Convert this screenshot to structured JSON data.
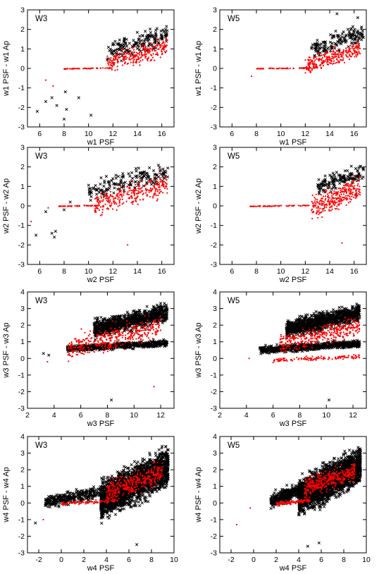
{
  "figure": {
    "rows": [
      {
        "xlabel": "w1 PSF",
        "ylabel": "w1 PSF - w1 Ap"
      },
      {
        "xlabel": "w2 PSF",
        "ylabel": "w2 PSF - w2 Ap"
      },
      {
        "xlabel": "w3 PSF",
        "ylabel": "w3 PSF - w3 Ap"
      },
      {
        "xlabel": "w4 PSF",
        "ylabel": "w4 PSF - w4 Ap"
      }
    ],
    "column_tags": [
      "W3",
      "W5"
    ],
    "colors": {
      "black_series": "#000000",
      "red_series": "#ff0000"
    }
  },
  "chart_data": [
    {
      "type": "scatter",
      "panel": "W3",
      "xlabel": "w1 PSF",
      "ylabel": "w1 PSF - w1 Ap",
      "xlim": [
        5,
        17
      ],
      "ylim": [
        -3,
        3
      ],
      "xticks": [
        6,
        8,
        10,
        12,
        14,
        16
      ],
      "yticks": [
        -3,
        -2,
        -1,
        0,
        1,
        2,
        3
      ],
      "series": [
        {
          "color": "#000000",
          "marker": "x",
          "clouds": [
            {
              "x": [
                11.5,
                16.5
              ],
              "y": [
                0.0,
                2.5
              ],
              "n": 170
            }
          ],
          "points": [
            {
              "x": 5.8,
              "y": -2.2
            },
            {
              "x": 6.5,
              "y": -1.7
            },
            {
              "x": 7.0,
              "y": -1.5
            },
            {
              "x": 7.4,
              "y": -1.9
            },
            {
              "x": 8.0,
              "y": -2.6
            },
            {
              "x": 8.2,
              "y": -2.1
            },
            {
              "x": 9.2,
              "y": -1.5
            },
            {
              "x": 10.2,
              "y": -2.4
            },
            {
              "x": 8.1,
              "y": -1.2
            }
          ]
        },
        {
          "color": "#ff0000",
          "marker": "dot",
          "clouds": [
            {
              "x": [
                8.0,
                12.0
              ],
              "y": [
                -0.05,
                0.05
              ],
              "n": 55
            },
            {
              "x": [
                11.5,
                16.5
              ],
              "y": [
                -0.4,
                1.8
              ],
              "n": 260
            }
          ],
          "points": [
            {
              "x": 6.5,
              "y": -0.6
            },
            {
              "x": 7.1,
              "y": -0.9
            }
          ]
        }
      ]
    },
    {
      "type": "scatter",
      "panel": "W5",
      "xlabel": "w1 PSF",
      "ylabel": "w1 PSF - w1 Ap",
      "xlim": [
        5,
        17
      ],
      "ylim": [
        -3,
        3
      ],
      "xticks": [
        6,
        8,
        10,
        12,
        14,
        16
      ],
      "yticks": [
        -3,
        -2,
        -1,
        0,
        1,
        2,
        3
      ],
      "series": [
        {
          "color": "#000000",
          "marker": "x",
          "clouds": [
            {
              "x": [
                12.5,
                16.8
              ],
              "y": [
                0.2,
                2.5
              ],
              "n": 150
            }
          ],
          "points": [
            {
              "x": 14.6,
              "y": 2.8
            },
            {
              "x": 16.3,
              "y": 2.6
            }
          ]
        },
        {
          "color": "#ff0000",
          "marker": "dot",
          "clouds": [
            {
              "x": [
                8.0,
                12.5
              ],
              "y": [
                -0.05,
                0.05
              ],
              "n": 60
            },
            {
              "x": [
                12.0,
                16.5
              ],
              "y": [
                -0.5,
                1.6
              ],
              "n": 280
            }
          ],
          "points": [
            {
              "x": 7.6,
              "y": -0.4
            }
          ]
        }
      ]
    },
    {
      "type": "scatter",
      "panel": "W3",
      "xlabel": "w2 PSF",
      "ylabel": "w2 PSF - w2 Ap",
      "xlim": [
        5,
        17
      ],
      "ylim": [
        -3,
        3
      ],
      "xticks": [
        6,
        8,
        10,
        12,
        14,
        16
      ],
      "yticks": [
        -3,
        -2,
        -1,
        0,
        1,
        2,
        3
      ],
      "series": [
        {
          "color": "#000000",
          "marker": "x",
          "clouds": [
            {
              "x": [
                10.0,
                16.5
              ],
              "y": [
                0.0,
                2.5
              ],
              "n": 170
            }
          ],
          "points": [
            {
              "x": 5.7,
              "y": -1.5
            },
            {
              "x": 7.0,
              "y": -1.4
            },
            {
              "x": 7.2,
              "y": -1.6
            },
            {
              "x": 7.3,
              "y": -1.3
            },
            {
              "x": 6.5,
              "y": -0.3
            },
            {
              "x": 8.0,
              "y": -0.2
            },
            {
              "x": 8.5,
              "y": 0.2
            }
          ]
        },
        {
          "color": "#ff0000",
          "marker": "dot",
          "clouds": [
            {
              "x": [
                7.5,
                11.0
              ],
              "y": [
                -0.05,
                0.05
              ],
              "n": 50
            },
            {
              "x": [
                10.5,
                16.5
              ],
              "y": [
                -0.8,
                2.0
              ],
              "n": 300
            }
          ],
          "points": [
            {
              "x": 5.3,
              "y": -0.8
            },
            {
              "x": 6.7,
              "y": -0.1
            },
            {
              "x": 13.2,
              "y": -2.0
            }
          ]
        }
      ]
    },
    {
      "type": "scatter",
      "panel": "W5",
      "xlabel": "w2 PSF",
      "ylabel": "w2 PSF - w2 Ap",
      "xlim": [
        5,
        17
      ],
      "ylim": [
        -3,
        3
      ],
      "xticks": [
        6,
        8,
        10,
        12,
        14,
        16
      ],
      "yticks": [
        -3,
        -2,
        -1,
        0,
        1,
        2,
        3
      ],
      "series": [
        {
          "color": "#000000",
          "marker": "x",
          "clouds": [
            {
              "x": [
                13.0,
                16.8
              ],
              "y": [
                0.3,
                2.4
              ],
              "n": 140
            }
          ],
          "points": [
            {
              "x": 13.2,
              "y": 0.8
            }
          ]
        },
        {
          "color": "#ff0000",
          "marker": "dot",
          "clouds": [
            {
              "x": [
                7.5,
                12.5
              ],
              "y": [
                -0.05,
                0.05
              ],
              "n": 60
            },
            {
              "x": [
                12.5,
                16.5
              ],
              "y": [
                -1.0,
                1.8
              ],
              "n": 300
            }
          ],
          "points": [
            {
              "x": 15.0,
              "y": -1.9
            }
          ]
        }
      ]
    },
    {
      "type": "scatter",
      "panel": "W3",
      "xlabel": "w3 PSF",
      "ylabel": "w3 PSF - w3 Ap",
      "xlim": [
        2,
        13
      ],
      "ylim": [
        -3,
        4
      ],
      "xticks": [
        2,
        4,
        6,
        8,
        10,
        12
      ],
      "yticks": [
        -3,
        -2,
        -1,
        0,
        1,
        2,
        3,
        4
      ],
      "series": [
        {
          "color": "#000000",
          "marker": "x",
          "clouds": [
            {
              "x": [
                5.0,
                12.5
              ],
              "y": [
                0.3,
                1.2
              ],
              "n": 600
            },
            {
              "x": [
                7.0,
                12.5
              ],
              "y": [
                1.0,
                3.5
              ],
              "n": 900
            }
          ],
          "points": [
            {
              "x": 3.2,
              "y": 0.3
            },
            {
              "x": 3.6,
              "y": 0.2
            },
            {
              "x": 8.3,
              "y": -2.5
            }
          ]
        },
        {
          "color": "#ff0000",
          "marker": "dot",
          "clouds": [
            {
              "x": [
                5.0,
                12.0
              ],
              "y": [
                -0.5,
                3.0
              ],
              "n": 400
            }
          ],
          "points": [
            {
              "x": 3.5,
              "y": -0.2
            },
            {
              "x": 11.5,
              "y": -1.7
            }
          ]
        }
      ]
    },
    {
      "type": "scatter",
      "panel": "W5",
      "xlabel": "w3 PSF",
      "ylabel": "w3 PSF - w3 Ap",
      "xlim": [
        2,
        13
      ],
      "ylim": [
        -3,
        4
      ],
      "xticks": [
        2,
        4,
        6,
        8,
        10,
        12
      ],
      "yticks": [
        -3,
        -2,
        -1,
        0,
        1,
        2,
        3,
        4
      ],
      "series": [
        {
          "color": "#000000",
          "marker": "x",
          "clouds": [
            {
              "x": [
                5.0,
                12.5
              ],
              "y": [
                0.2,
                1.2
              ],
              "n": 700
            },
            {
              "x": [
                7.0,
                12.5
              ],
              "y": [
                1.0,
                3.5
              ],
              "n": 1000
            }
          ],
          "points": [
            {
              "x": 10.2,
              "y": -2.5
            }
          ]
        },
        {
          "color": "#ff0000",
          "marker": "dot",
          "clouds": [
            {
              "x": [
                6.0,
                12.5
              ],
              "y": [
                -0.3,
                0.3
              ],
              "n": 120
            },
            {
              "x": [
                6.5,
                12.5
              ],
              "y": [
                0.0,
                2.8
              ],
              "n": 350
            }
          ],
          "points": [
            {
              "x": 4.2,
              "y": 0.0
            }
          ]
        }
      ]
    },
    {
      "type": "scatter",
      "panel": "W3",
      "xlabel": "w4 PSF",
      "ylabel": "w4 PSF - w4 Ap",
      "xlim": [
        -3,
        10
      ],
      "ylim": [
        -3,
        4
      ],
      "xticks": [
        -2,
        0,
        2,
        4,
        6,
        8,
        10
      ],
      "yticks": [
        -3,
        -2,
        -1,
        0,
        1,
        2,
        3,
        4
      ],
      "series": [
        {
          "color": "#000000",
          "marker": "x",
          "clouds": [
            {
              "x": [
                -1.5,
                3.5
              ],
              "y": [
                -0.5,
                1.2
              ],
              "n": 300
            },
            {
              "x": [
                3.5,
                9.5
              ],
              "y": [
                -1.5,
                3.8
              ],
              "n": 2200
            }
          ],
          "points": [
            {
              "x": -2.3,
              "y": -1.2
            },
            {
              "x": 6.7,
              "y": -2.5
            }
          ]
        },
        {
          "color": "#ff0000",
          "marker": "dot",
          "clouds": [
            {
              "x": [
                0.0,
                5.0
              ],
              "y": [
                -0.2,
                0.3
              ],
              "n": 100
            },
            {
              "x": [
                4.0,
                9.0
              ],
              "y": [
                -0.3,
                2.8
              ],
              "n": 350
            }
          ],
          "points": [
            {
              "x": -1.6,
              "y": -1.0
            }
          ]
        }
      ]
    },
    {
      "type": "scatter",
      "panel": "W5",
      "xlabel": "w4 PSF",
      "ylabel": "w4 PSF - w4 Ap",
      "xlim": [
        -3,
        10
      ],
      "ylim": [
        -3,
        4
      ],
      "xticks": [
        -2,
        0,
        2,
        4,
        6,
        8,
        10
      ],
      "yticks": [
        -3,
        -2,
        -1,
        0,
        1,
        2,
        3,
        4
      ],
      "series": [
        {
          "color": "#000000",
          "marker": "x",
          "clouds": [
            {
              "x": [
                1.5,
                4.5
              ],
              "y": [
                -0.5,
                1.5
              ],
              "n": 350
            },
            {
              "x": [
                4.0,
                9.5
              ],
              "y": [
                -1.2,
                3.8
              ],
              "n": 2200
            }
          ],
          "points": [
            {
              "x": 4.8,
              "y": -2.6
            },
            {
              "x": 5.8,
              "y": -2.4
            }
          ]
        },
        {
          "color": "#ff0000",
          "marker": "dot",
          "clouds": [
            {
              "x": [
                2.0,
                5.0
              ],
              "y": [
                -0.2,
                0.3
              ],
              "n": 120
            },
            {
              "x": [
                4.5,
                9.0
              ],
              "y": [
                0.0,
                2.8
              ],
              "n": 350
            }
          ],
          "points": [
            {
              "x": -1.5,
              "y": -1.3
            },
            {
              "x": -0.3,
              "y": -0.3
            }
          ]
        }
      ]
    }
  ]
}
